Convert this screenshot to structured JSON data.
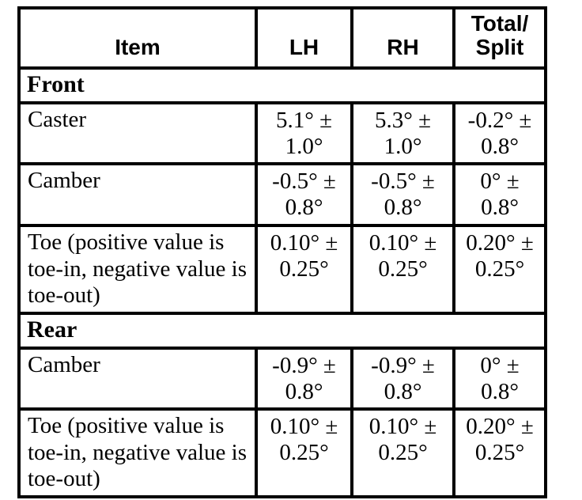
{
  "colors": {
    "ink": "#000000",
    "paper": "#ffffff"
  },
  "header": {
    "item": "Item",
    "lh": "LH",
    "rh": "RH",
    "total_line1": "Total/",
    "total_line2": "Split"
  },
  "sections": [
    {
      "title": "Front",
      "rows": [
        {
          "item": "Caster",
          "lh": "5.1° ± 1.0°",
          "rh": "5.3° ± 1.0°",
          "total": "-0.2° ± 0.8°"
        },
        {
          "item": "Camber",
          "lh": "-0.5° ± 0.8°",
          "rh": "-0.5° ± 0.8°",
          "total": "0° ± 0.8°"
        },
        {
          "item": "Toe (positive value is toe-in, negative value is toe-out)",
          "lh": "0.10° ± 0.25°",
          "rh": "0.10° ± 0.25°",
          "total": "0.20° ± 0.25°"
        }
      ]
    },
    {
      "title": "Rear",
      "rows": [
        {
          "item": "Camber",
          "lh": "-0.9° ± 0.8°",
          "rh": "-0.9° ± 0.8°",
          "total": "0° ± 0.8°"
        },
        {
          "item": "Toe (positive value is toe-in, negative value is toe-out)",
          "lh": "0.10° ± 0.25°",
          "rh": "0.10° ± 0.25°",
          "total": "0.20° ± 0.25°"
        }
      ]
    }
  ]
}
